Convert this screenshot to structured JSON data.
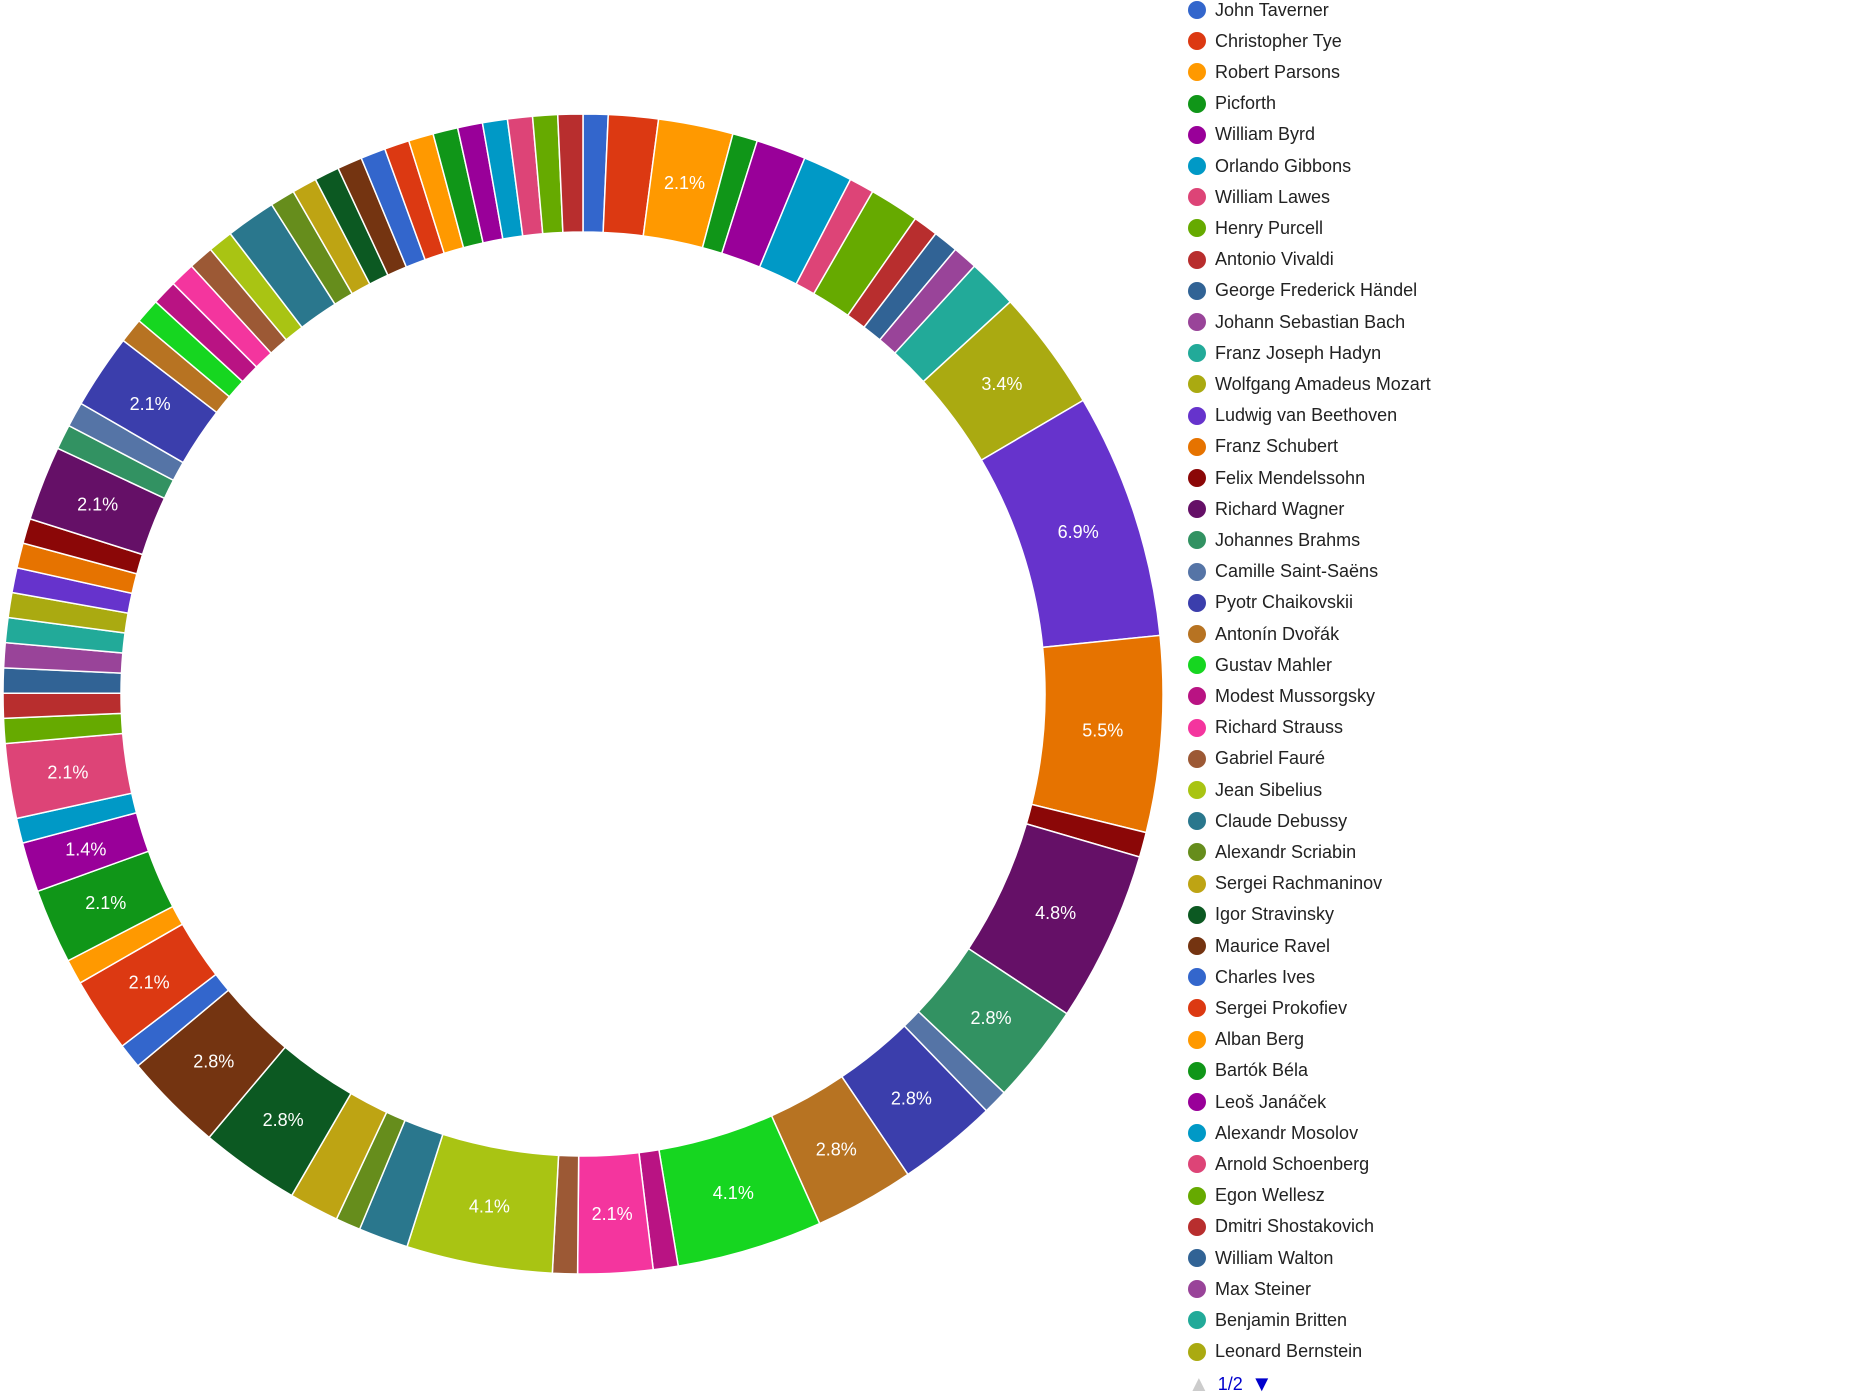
{
  "chart_data": {
    "type": "pie",
    "donut": true,
    "legend_position": "right",
    "series": [
      {
        "name": "John Taverner",
        "value": 0.7,
        "color": "#3366cc"
      },
      {
        "name": "Christopher Tye",
        "value": 1.4,
        "color": "#dc3912"
      },
      {
        "name": "Robert Parsons",
        "value": 2.1,
        "color": "#ff9900"
      },
      {
        "name": "Picforth",
        "value": 0.7,
        "color": "#109618"
      },
      {
        "name": "William Byrd",
        "value": 1.4,
        "color": "#990099"
      },
      {
        "name": "Orlando Gibbons",
        "value": 1.4,
        "color": "#0099c6"
      },
      {
        "name": "William Lawes",
        "value": 0.7,
        "color": "#dd4477"
      },
      {
        "name": "Henry Purcell",
        "value": 1.4,
        "color": "#66aa00"
      },
      {
        "name": "Antonio Vivaldi",
        "value": 0.7,
        "color": "#b82e2e"
      },
      {
        "name": "George Frederick Händel",
        "value": 0.7,
        "color": "#316395"
      },
      {
        "name": "Johann Sebastian Bach",
        "value": 0.7,
        "color": "#994499"
      },
      {
        "name": "Franz Joseph Hadyn",
        "value": 1.4,
        "color": "#22aa99"
      },
      {
        "name": "Wolfgang Amadeus Mozart",
        "value": 3.4,
        "color": "#aaaa11"
      },
      {
        "name": "Ludwig van Beethoven",
        "value": 6.9,
        "color": "#6633cc"
      },
      {
        "name": "Franz Schubert",
        "value": 5.5,
        "color": "#e67300"
      },
      {
        "name": "Felix Mendelssohn",
        "value": 0.7,
        "color": "#8b0707"
      },
      {
        "name": "Richard Wagner",
        "value": 4.8,
        "color": "#651067"
      },
      {
        "name": "Johannes Brahms",
        "value": 2.8,
        "color": "#329262"
      },
      {
        "name": "Camille Saint-Saëns",
        "value": 0.7,
        "color": "#5574a6"
      },
      {
        "name": "Pyotr Chaikovskii",
        "value": 2.8,
        "color": "#3b3eac"
      },
      {
        "name": "Antonín Dvořák",
        "value": 2.8,
        "color": "#b77322"
      },
      {
        "name": "Gustav Mahler",
        "value": 4.1,
        "color": "#16d620"
      },
      {
        "name": "Modest Mussorgsky",
        "value": 0.7,
        "color": "#b91383"
      },
      {
        "name": "Richard Strauss",
        "value": 2.1,
        "color": "#f4359e"
      },
      {
        "name": "Gabriel Fauré",
        "value": 0.7,
        "color": "#9c5935"
      },
      {
        "name": "Jean Sibelius",
        "value": 4.1,
        "color": "#a9c413"
      },
      {
        "name": "Claude Debussy",
        "value": 1.4,
        "color": "#2a778d"
      },
      {
        "name": "Alexandr Scriabin",
        "value": 0.7,
        "color": "#668d1c"
      },
      {
        "name": "Sergei Rachmaninov",
        "value": 1.4,
        "color": "#bea413"
      },
      {
        "name": "Igor Stravinsky",
        "value": 2.8,
        "color": "#0c5922"
      },
      {
        "name": "Maurice Ravel",
        "value": 2.8,
        "color": "#743411"
      },
      {
        "name": "Charles Ives",
        "value": 0.7,
        "color": "#3366cc"
      },
      {
        "name": "Sergei Prokofiev",
        "value": 2.1,
        "color": "#dc3912"
      },
      {
        "name": "Alban Berg",
        "value": 0.7,
        "color": "#ff9900"
      },
      {
        "name": "Bartók Béla",
        "value": 2.1,
        "color": "#109618"
      },
      {
        "name": "Leoš Janáček",
        "value": 1.4,
        "color": "#990099"
      },
      {
        "name": "Alexandr Mosolov",
        "value": 0.7,
        "color": "#0099c6"
      },
      {
        "name": "Arnold Schoenberg",
        "value": 2.1,
        "color": "#dd4477"
      },
      {
        "name": "Egon Wellesz",
        "value": 0.7,
        "color": "#66aa00"
      },
      {
        "name": "Dmitri Shostakovich",
        "value": 0.7,
        "color": "#b82e2e"
      },
      {
        "name": "William Walton",
        "value": 0.7,
        "color": "#316395"
      },
      {
        "name": "Max Steiner",
        "value": 0.7,
        "color": "#994499"
      },
      {
        "name": "Benjamin Britten",
        "value": 0.7,
        "color": "#22aa99"
      },
      {
        "name": "Leonard Bernstein",
        "value": 0.7,
        "color": "#aaaa11"
      },
      {
        "name": "",
        "value": 0.7,
        "color": "#6633cc"
      },
      {
        "name": "",
        "value": 0.7,
        "color": "#e67300"
      },
      {
        "name": "",
        "value": 0.7,
        "color": "#8b0707"
      },
      {
        "name": "",
        "value": 2.1,
        "color": "#651067"
      },
      {
        "name": "",
        "value": 0.7,
        "color": "#329262"
      },
      {
        "name": "",
        "value": 0.7,
        "color": "#5574a6"
      },
      {
        "name": "",
        "value": 2.1,
        "color": "#3b3eac"
      },
      {
        "name": "",
        "value": 0.7,
        "color": "#b77322"
      },
      {
        "name": "",
        "value": 0.7,
        "color": "#16d620"
      },
      {
        "name": "",
        "value": 0.7,
        "color": "#b91383"
      },
      {
        "name": "",
        "value": 0.7,
        "color": "#f4359e"
      },
      {
        "name": "",
        "value": 0.7,
        "color": "#9c5935"
      },
      {
        "name": "",
        "value": 0.7,
        "color": "#a9c413"
      },
      {
        "name": "",
        "value": 1.4,
        "color": "#2a778d"
      },
      {
        "name": "",
        "value": 0.7,
        "color": "#668d1c"
      },
      {
        "name": "",
        "value": 0.7,
        "color": "#bea413"
      },
      {
        "name": "",
        "value": 0.7,
        "color": "#0c5922"
      },
      {
        "name": "",
        "value": 0.7,
        "color": "#743411"
      },
      {
        "name": "",
        "value": 0.7,
        "color": "#3366cc"
      },
      {
        "name": "",
        "value": 0.7,
        "color": "#dc3912"
      },
      {
        "name": "",
        "value": 0.7,
        "color": "#ff9900"
      },
      {
        "name": "",
        "value": 0.7,
        "color": "#109618"
      },
      {
        "name": "",
        "value": 0.7,
        "color": "#990099"
      },
      {
        "name": "",
        "value": 0.7,
        "color": "#0099c6"
      },
      {
        "name": "",
        "value": 0.7,
        "color": "#dd4477"
      },
      {
        "name": "",
        "value": 0.7,
        "color": "#66aa00"
      },
      {
        "name": "",
        "value": 0.7,
        "color": "#b82e2e"
      }
    ],
    "slice_labels": [
      {
        "slice": 2,
        "text": "2.1%"
      },
      {
        "slice": 12,
        "text": "3.4%"
      },
      {
        "slice": 13,
        "text": "6.9%"
      },
      {
        "slice": 14,
        "text": "5.5%"
      },
      {
        "slice": 16,
        "text": "4.8%"
      },
      {
        "slice": 17,
        "text": "2.8%"
      },
      {
        "slice": 19,
        "text": "2.8%"
      },
      {
        "slice": 20,
        "text": "2.8%"
      },
      {
        "slice": 21,
        "text": "4.1%"
      },
      {
        "slice": 23,
        "text": "2.1%"
      },
      {
        "slice": 25,
        "text": "4.1%"
      },
      {
        "slice": 29,
        "text": "2.8%"
      },
      {
        "slice": 30,
        "text": "2.8%"
      },
      {
        "slice": 32,
        "text": "2.1%"
      },
      {
        "slice": 34,
        "text": "2.1%"
      },
      {
        "slice": 35,
        "text": "1.4%"
      },
      {
        "slice": 37,
        "text": "2.1%"
      },
      {
        "slice": 47,
        "text": "2.1%"
      },
      {
        "slice": 50,
        "text": "2.1%"
      }
    ]
  },
  "legend": {
    "page_indicator": "1/2",
    "prev_icon": "triangle-up",
    "next_icon": "triangle-down",
    "prev_color": "#cccccc",
    "next_color": "#0000cc"
  }
}
